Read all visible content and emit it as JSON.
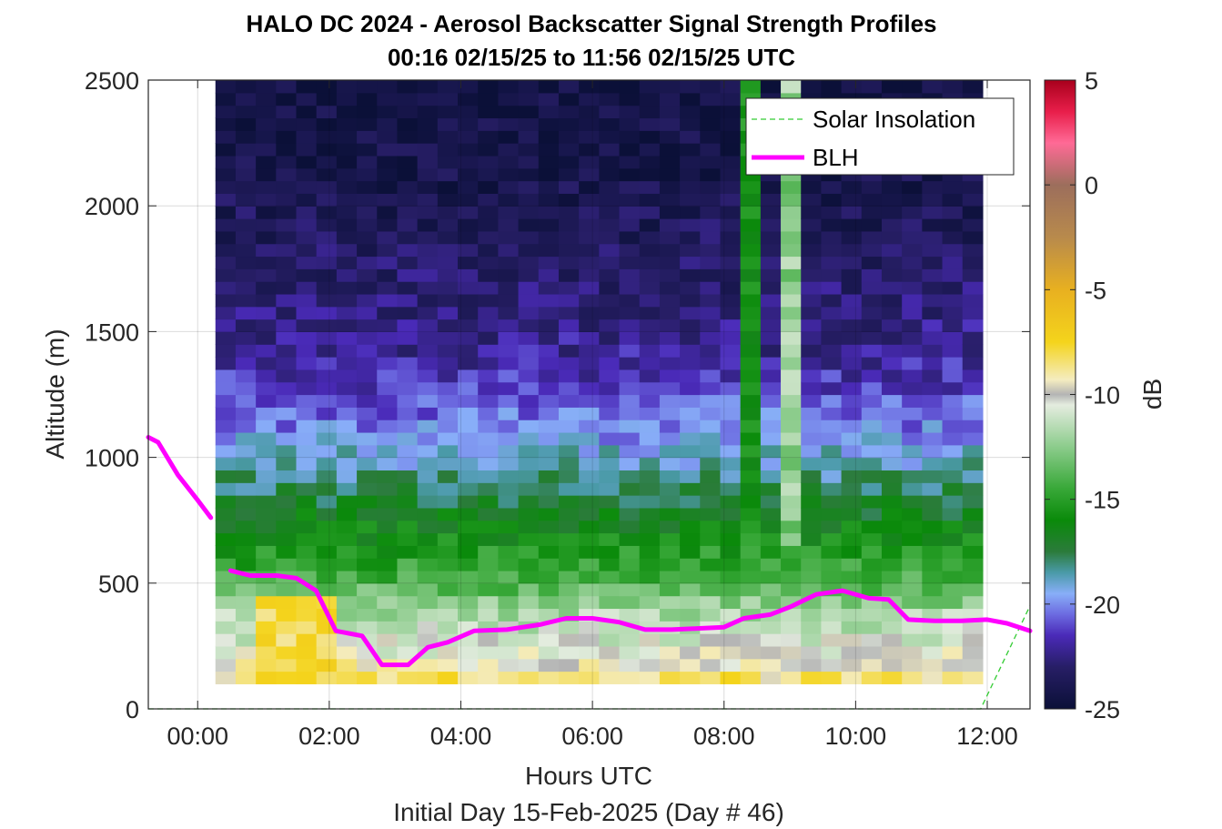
{
  "chart_data": {
    "type": "heatmap",
    "title": "HALO DC 2024 - Aerosol Backscatter Signal Strength Profiles",
    "subtitle": "00:16 02/15/25 to 11:56 02/15/25  UTC",
    "xlabel": "Hours UTC",
    "xlabel2": "Initial Day 15-Feb-2025 (Day # 46)",
    "ylabel": "Altitude (m)",
    "colorbar_label": "dB",
    "xlim": [
      -0.75,
      12.65
    ],
    "ylim": [
      0,
      2500
    ],
    "clim": [
      -25,
      5
    ],
    "x_ticks": [
      0,
      2,
      4,
      6,
      8,
      10,
      12
    ],
    "x_tick_labels": [
      "00:00",
      "02:00",
      "04:00",
      "06:00",
      "08:00",
      "10:00",
      "12:00"
    ],
    "y_ticks": [
      0,
      500,
      1000,
      1500,
      2000,
      2500
    ],
    "y_tick_labels": [
      "0",
      "500",
      "1000",
      "1500",
      "2000",
      "2500"
    ],
    "colorbar_ticks": [
      5,
      0,
      -5,
      -10,
      -15,
      -20,
      -25
    ],
    "colorbar_tick_labels": [
      "5",
      "0",
      "-5",
      "-10",
      "-15",
      "-20",
      "-25"
    ],
    "grid": true,
    "legend_position": "top-right",
    "data_time_range": [
      0.27,
      11.93
    ],
    "data_altitude_range": [
      100,
      2500
    ],
    "heatmap_profile_db": [
      {
        "altitude": 100,
        "db": -8
      },
      {
        "altitude": 200,
        "db": -10
      },
      {
        "altitude": 300,
        "db": -11
      },
      {
        "altitude": 400,
        "db": -12
      },
      {
        "altitude": 500,
        "db": -14
      },
      {
        "altitude": 650,
        "db": -15.5
      },
      {
        "altitude": 800,
        "db": -17
      },
      {
        "altitude": 950,
        "db": -18.5
      },
      {
        "altitude": 1100,
        "db": -20
      },
      {
        "altitude": 1250,
        "db": -21
      },
      {
        "altitude": 1400,
        "db": -22
      },
      {
        "altitude": 1700,
        "db": -23
      },
      {
        "altitude": 2100,
        "db": -24
      },
      {
        "altitude": 2500,
        "db": -24.5
      }
    ],
    "colormap": [
      {
        "db": -25,
        "color": "#0b1038"
      },
      {
        "db": -23,
        "color": "#271e66"
      },
      {
        "db": -21.5,
        "color": "#4a2ab8"
      },
      {
        "db": -20.5,
        "color": "#6c6ae0"
      },
      {
        "db": -19.5,
        "color": "#88aef8"
      },
      {
        "db": -18.5,
        "color": "#4a9aa8"
      },
      {
        "db": -17.5,
        "color": "#2b7b3b"
      },
      {
        "db": -16,
        "color": "#0a8a0a"
      },
      {
        "db": -14.5,
        "color": "#38a838"
      },
      {
        "db": -12.5,
        "color": "#8ccc8c"
      },
      {
        "db": -10.5,
        "color": "#e4ecdf"
      },
      {
        "db": -10,
        "color": "#b4b4b4"
      },
      {
        "db": -9.3,
        "color": "#f4ecc0"
      },
      {
        "db": -7.5,
        "color": "#f4d41c"
      },
      {
        "db": -5,
        "color": "#e8b020"
      },
      {
        "db": -2.5,
        "color": "#b88a4c"
      },
      {
        "db": 0,
        "color": "#9c6e5c"
      },
      {
        "db": 2,
        "color": "#ff6a96"
      },
      {
        "db": 3.5,
        "color": "#e81e4a"
      },
      {
        "db": 5,
        "color": "#a8001c"
      }
    ],
    "series": [
      {
        "name": "Solar Insolation",
        "style": "dashed",
        "color": "#33cc33",
        "x": [
          -0.75,
          11.9,
          12.65
        ],
        "y": [
          0,
          0,
          410
        ]
      },
      {
        "name": "BLH",
        "style": "solid",
        "color": "#ff00ff",
        "segments": [
          {
            "x": [
              -0.75,
              -0.6,
              -0.3,
              0.0,
              0.2
            ],
            "y": [
              1080,
              1060,
              930,
              830,
              760
            ]
          },
          {
            "x": [
              0.5,
              0.8,
              1.2,
              1.5,
              1.8,
              2.1,
              2.5,
              2.8,
              3.2,
              3.5,
              3.8,
              4.2,
              4.7,
              5.2,
              5.6,
              6.0,
              6.4,
              6.8,
              7.2,
              7.6,
              8.0,
              8.3,
              8.7,
              9.0,
              9.4,
              9.8,
              10.2,
              10.5,
              10.8,
              11.2,
              11.6,
              12.0,
              12.3,
              12.65
            ],
            "y": [
              550,
              530,
              530,
              520,
              470,
              310,
              290,
              175,
              175,
              245,
              265,
              310,
              315,
              335,
              360,
              360,
              345,
              315,
              315,
              320,
              325,
              360,
              375,
              405,
              455,
              470,
              440,
              435,
              355,
              350,
              350,
              355,
              340,
              310
            ]
          }
        ]
      }
    ]
  }
}
